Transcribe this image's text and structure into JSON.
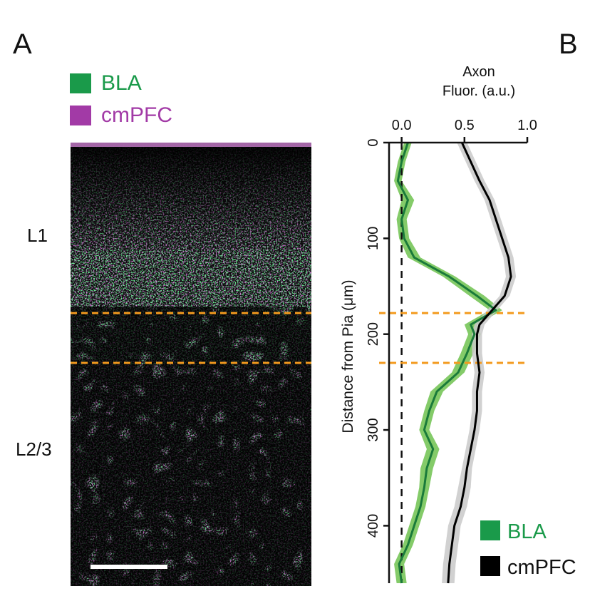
{
  "panels": {
    "a": "A",
    "b": "B"
  },
  "panel_a": {
    "legend": [
      {
        "label": "BLA",
        "color": "#1a9a4a"
      },
      {
        "label": "cmPFC",
        "color": "#a23aa6"
      }
    ],
    "layer_labels": [
      "L1",
      "L2/3"
    ],
    "boundary_depths": [
      178,
      230
    ],
    "boundary_color": "#f39a1e"
  },
  "chart_data": {
    "type": "line",
    "title": "",
    "xlabel": "Axon\nFluor. (a.u.)",
    "ylabel": "Distance from Pia (μm)",
    "xlim": [
      -0.1,
      1.0
    ],
    "ylim": [
      0,
      460
    ],
    "x_ticks": [
      "0.0",
      "0.5",
      "1.0"
    ],
    "x_tick_values": [
      0.0,
      0.5,
      1.0
    ],
    "y_ticks": [
      "0",
      "100",
      "200",
      "300",
      "400"
    ],
    "y_tick_values": [
      0,
      100,
      200,
      300,
      400
    ],
    "legend_position": "bottom-right",
    "reference_lines": [
      {
        "orientation": "vertical",
        "x": 0.0,
        "style": "dashed",
        "color": "#111111"
      },
      {
        "orientation": "horizontal",
        "y": 178,
        "style": "dashed",
        "color": "#f39a1e"
      },
      {
        "orientation": "horizontal",
        "y": 230,
        "style": "dashed",
        "color": "#f39a1e"
      }
    ],
    "series": [
      {
        "name": "BLA",
        "color": "#1a7a3a",
        "band_color": "#6fc24f",
        "depth": [
          0,
          20,
          40,
          60,
          80,
          100,
          120,
          140,
          160,
          175,
          190,
          200,
          220,
          240,
          260,
          280,
          300,
          320,
          340,
          360,
          380,
          400,
          420,
          440,
          460
        ],
        "mean": [
          0.05,
          0.0,
          -0.03,
          0.05,
          0.0,
          0.02,
          0.1,
          0.38,
          0.6,
          0.75,
          0.55,
          0.58,
          0.52,
          0.45,
          0.28,
          0.22,
          0.18,
          0.25,
          0.2,
          0.18,
          0.15,
          0.1,
          0.05,
          -0.02,
          0.0
        ],
        "sem": [
          0.03,
          0.03,
          0.03,
          0.05,
          0.04,
          0.04,
          0.05,
          0.05,
          0.06,
          0.05,
          0.05,
          0.05,
          0.05,
          0.05,
          0.05,
          0.04,
          0.04,
          0.05,
          0.05,
          0.04,
          0.04,
          0.04,
          0.04,
          0.04,
          0.04
        ]
      },
      {
        "name": "cmPFC",
        "color": "#000000",
        "band_color": "#c9c9c9",
        "depth": [
          0,
          20,
          40,
          60,
          80,
          100,
          120,
          140,
          160,
          175,
          190,
          200,
          220,
          240,
          260,
          280,
          300,
          320,
          340,
          360,
          380,
          400,
          420,
          440,
          460
        ],
        "mean": [
          0.48,
          0.55,
          0.62,
          0.7,
          0.75,
          0.8,
          0.85,
          0.87,
          0.82,
          0.72,
          0.62,
          0.6,
          0.6,
          0.62,
          0.6,
          0.6,
          0.58,
          0.55,
          0.52,
          0.5,
          0.47,
          0.42,
          0.4,
          0.38,
          0.37
        ],
        "sem": [
          0.04,
          0.04,
          0.04,
          0.04,
          0.04,
          0.04,
          0.04,
          0.04,
          0.04,
          0.04,
          0.04,
          0.04,
          0.04,
          0.04,
          0.04,
          0.04,
          0.04,
          0.04,
          0.04,
          0.05,
          0.05,
          0.05,
          0.05,
          0.05,
          0.05
        ]
      }
    ]
  }
}
